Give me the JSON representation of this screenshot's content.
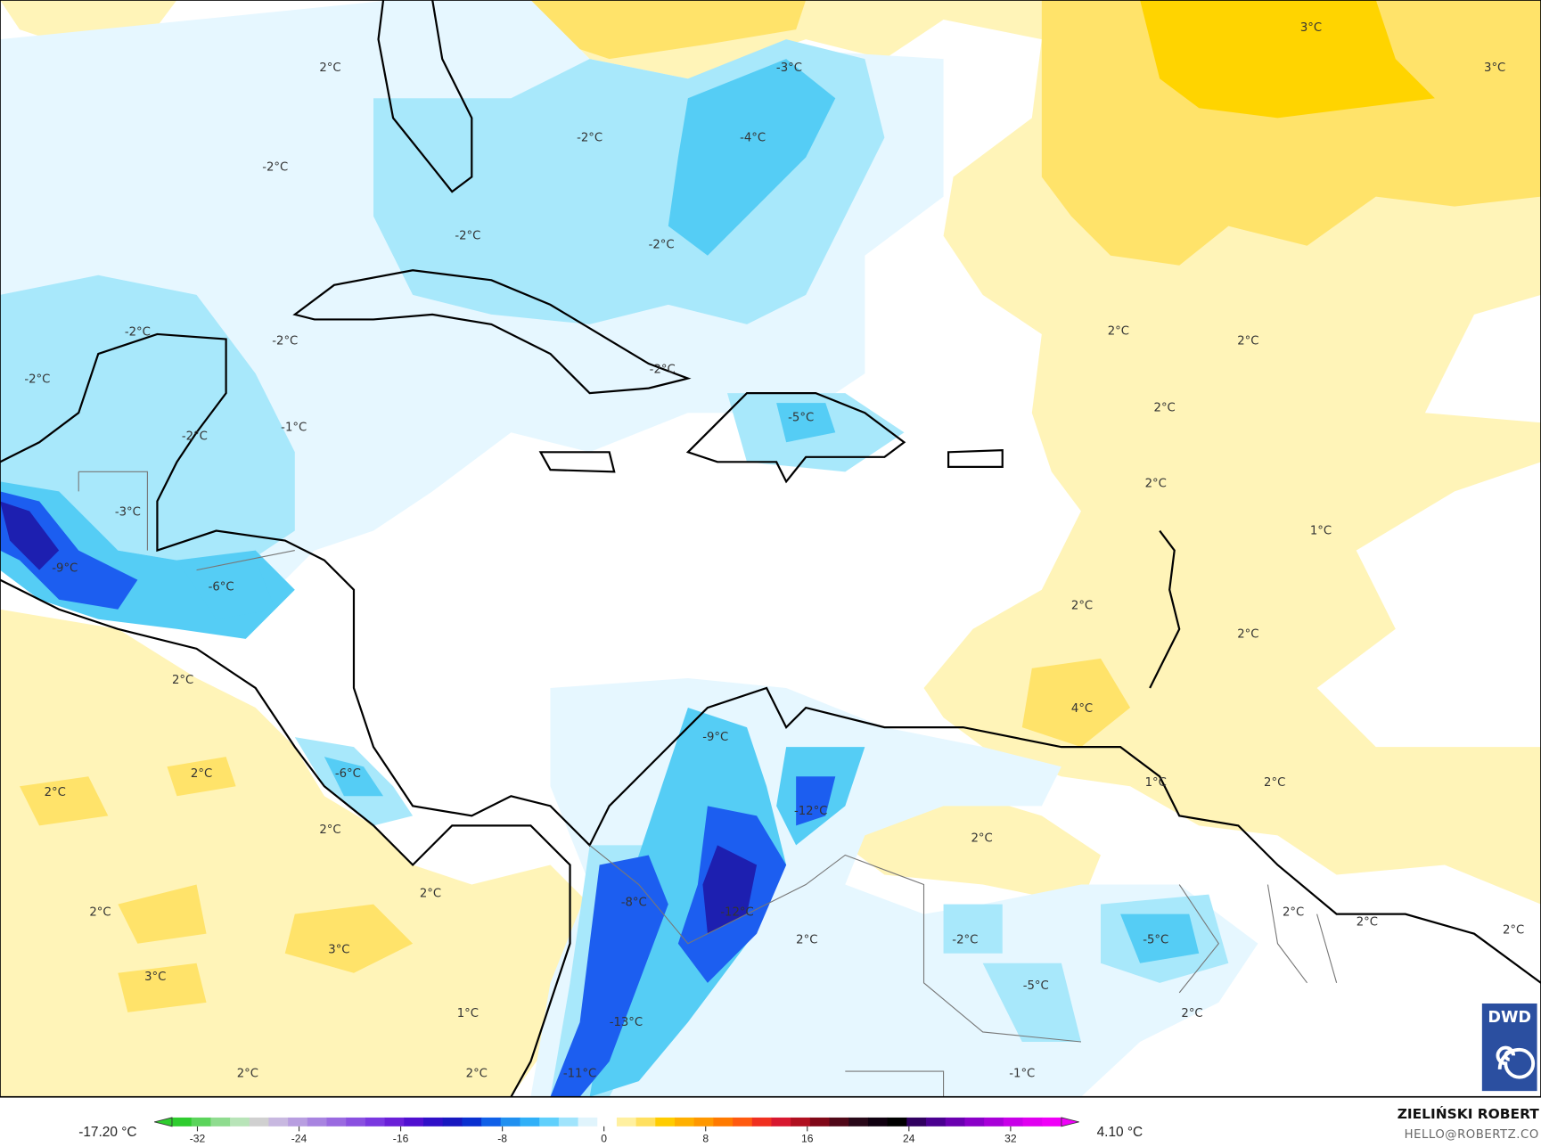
{
  "map": {
    "type": "temperature anomaly map",
    "colors": {
      "ocean_neutral": "#ffffff",
      "warm_light": "#fff4b8",
      "warm_mid": "#ffe36a",
      "warm_strong": "#ffd400",
      "cold_light": "#e6f7ff",
      "cold_mid": "#a8e8fb",
      "cold_strong": "#55cdf5",
      "cold_deep": "#1c5ef0",
      "cold_deepest": "#1d1fb0"
    },
    "labels": [
      "2°C",
      "-3°C",
      "-2°C",
      "-4°C",
      "3°C",
      "3°C",
      "-2°C",
      "-2°C",
      "-2°C",
      "-2°C",
      "-2°C",
      "-2°C",
      "2°C",
      "2°C",
      "-2°C",
      "2°C",
      "-1°C",
      "-2°C",
      "-5°C",
      "-3°C",
      "2°C",
      "1°C",
      "-9°C",
      "-6°C",
      "2°C",
      "2°C",
      "2°C",
      "4°C",
      "-9°C",
      "-6°C",
      "2°C",
      "2°C",
      "1°C",
      "2°C",
      "-12°C",
      "2°C",
      "2°C",
      "2°C",
      "-8°C",
      "-12°C",
      "2°C",
      "2°C",
      "2°C",
      "2°C",
      "2°C",
      "-2°C",
      "-5°C",
      "3°C",
      "3°C",
      "-5°C",
      "1°C",
      "2°C",
      "-13°C",
      "2°C",
      "2°C",
      "-1°C",
      "-11°C"
    ]
  },
  "logo": {
    "text": "DWD"
  },
  "colorbar": {
    "min_label": "-17.20 °C",
    "max_label": "4.10 °C",
    "ticks": [
      "-32",
      "-24",
      "-16",
      "-8",
      "0",
      "8",
      "16",
      "24",
      "32"
    ],
    "range": [
      -34,
      36
    ],
    "colors": [
      "#2ecc2e",
      "#5bd45b",
      "#8fdc8f",
      "#b8e4b8",
      "#d0d0d0",
      "#c8b8e0",
      "#b89ee0",
      "#a884e0",
      "#9a6ae0",
      "#8a50e0",
      "#7a38e0",
      "#6a20d8",
      "#5010d0",
      "#3010c8",
      "#1818c0",
      "#0a30d0",
      "#1060e8",
      "#2090f0",
      "#30b0f8",
      "#60d0fc",
      "#a0e4fc",
      "#e0f4fc",
      "#ffffff",
      "#fff0a0",
      "#ffe060",
      "#ffcc00",
      "#ffb000",
      "#ff9800",
      "#ff7a00",
      "#ff5a10",
      "#f03020",
      "#d81830",
      "#b01020",
      "#800818",
      "#500818",
      "#280818",
      "#100010",
      "#000000",
      "#300060",
      "#4a0090",
      "#6a00b0",
      "#8a00c8",
      "#a800d8",
      "#c800e8",
      "#e000f0",
      "#f000f8"
    ]
  },
  "credit": {
    "author": "ZIELIŃSKI ROBERT",
    "email": "HELLO@ROBERTZ.CO"
  }
}
